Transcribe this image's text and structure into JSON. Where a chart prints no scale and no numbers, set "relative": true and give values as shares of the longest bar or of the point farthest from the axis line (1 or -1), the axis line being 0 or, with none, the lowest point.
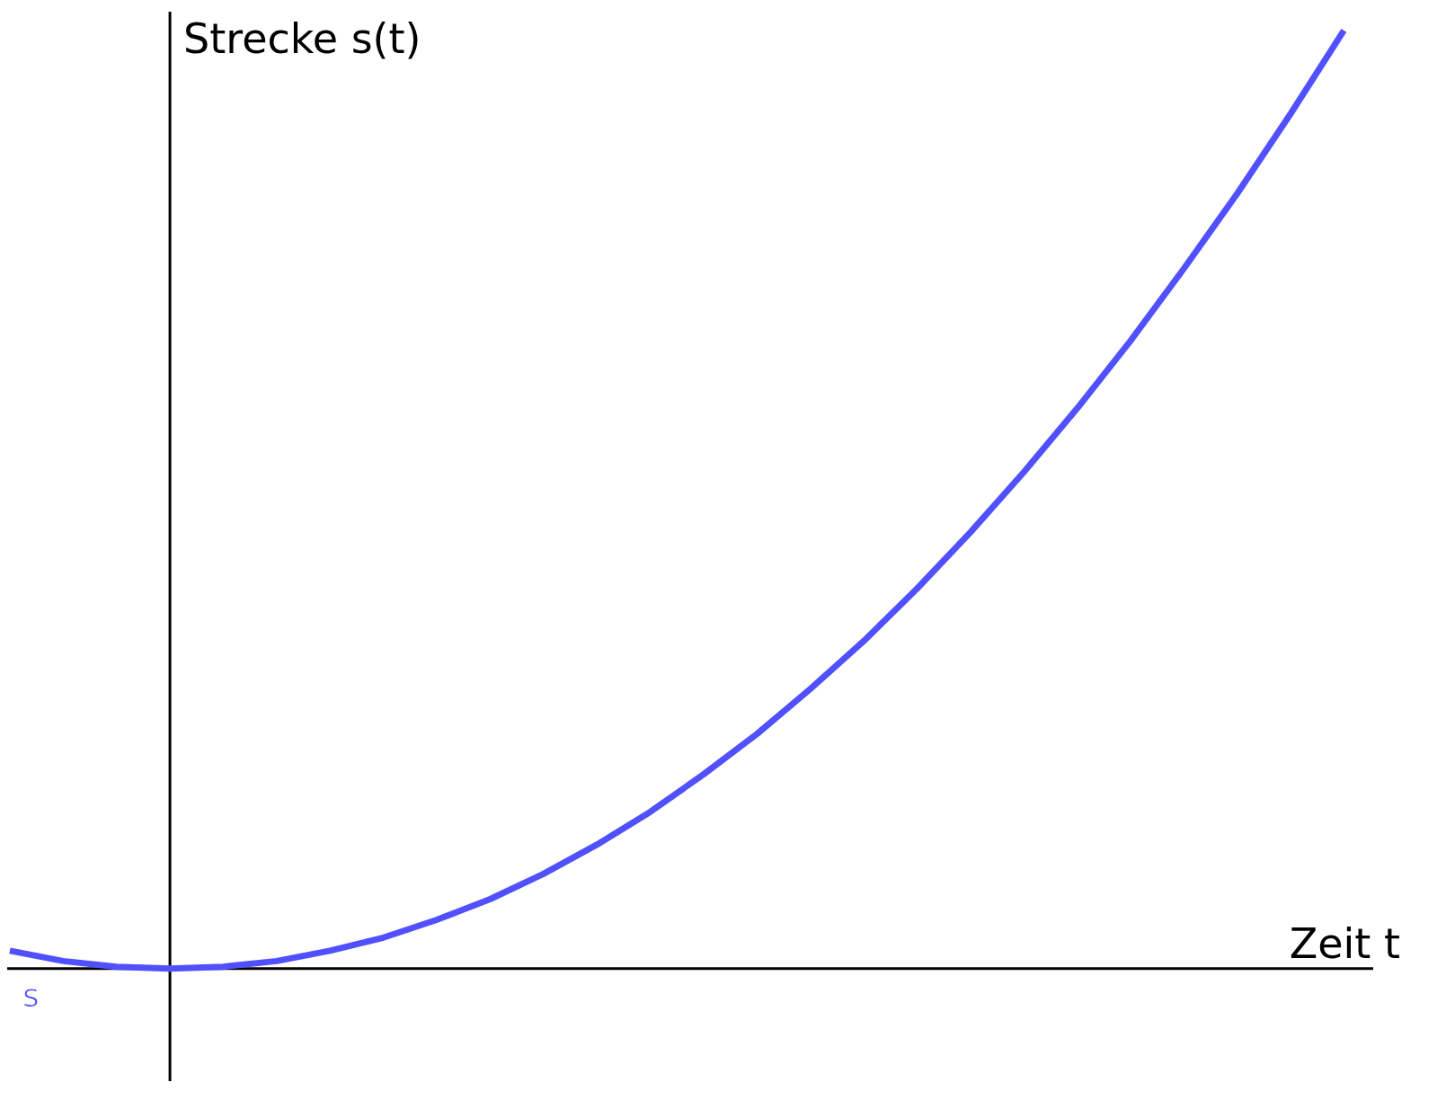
{
  "chart_data": {
    "type": "line",
    "relative": true,
    "xlabel": "Zeit t",
    "ylabel": "Strecke s(t)",
    "categories": [
      null,
      null,
      null,
      null,
      null,
      null,
      null,
      null,
      null,
      null,
      null,
      null,
      null,
      null,
      null,
      null,
      null,
      null,
      null,
      null,
      null,
      null,
      null,
      null,
      null,
      null
    ],
    "series": [
      {
        "name": "s",
        "color": "#5050ff",
        "values": [
          0.019,
          0.008,
          0.002,
          0,
          0.002,
          0.008,
          0.019,
          0.033,
          0.052,
          0.074,
          0.101,
          0.132,
          0.167,
          0.207,
          0.25,
          0.298,
          0.349,
          0.405,
          0.465,
          0.529,
          0.597,
          0.669,
          0.746,
          0.826,
          0.911,
          1
        ]
      }
    ],
    "marker": "none",
    "line_style": "solid"
  }
}
